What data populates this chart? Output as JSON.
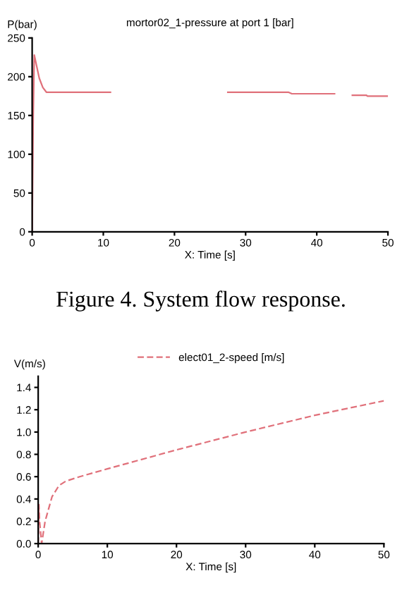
{
  "chart_data": [
    {
      "type": "line",
      "title": "mortor02_1-pressure at port 1 [bar]",
      "xlabel": "X: Time [s]",
      "ylabel": "P(bar)",
      "xlim": [
        0,
        50
      ],
      "xticks": [
        0,
        10,
        20,
        30,
        40,
        50
      ],
      "ylim": [
        0,
        250
      ],
      "yticks": [
        0,
        50,
        100,
        150,
        200,
        250
      ],
      "grid": false,
      "legend": false,
      "line_style": "solid",
      "annotations": [
        "Figure 4. System flow response."
      ],
      "series": [
        {
          "color": "#e0707a",
          "x": [
            0,
            0.15,
            0.3,
            0.6,
            1.0,
            1.5,
            2.0,
            5,
            11,
            11.1,
            27.5,
            32,
            36,
            36.5,
            42.5,
            42.6,
            45,
            47,
            47.1,
            50
          ],
          "values": [
            0,
            150,
            228,
            215,
            198,
            186,
            180,
            180,
            180,
            null,
            180,
            180,
            180,
            178,
            178,
            null,
            176,
            176,
            175,
            175
          ]
        }
      ]
    },
    {
      "type": "line",
      "xlabel": "X: Time [s]",
      "ylabel": "V(m/s)",
      "xlim": [
        0,
        50
      ],
      "xticks": [
        0,
        10,
        20,
        30,
        40,
        50
      ],
      "ylim": [
        0,
        1.5
      ],
      "yticks": [
        {
          "value": 0,
          "label": "0.0"
        },
        0.2,
        0.4,
        0.6,
        0.8,
        {
          "value": 1.0,
          "label": "1.0"
        },
        1.2,
        1.4
      ],
      "grid": false,
      "legend": "top",
      "line_style": "dashed",
      "series": [
        {
          "name": "elect01_2-speed [m/s]",
          "color": "#e0707a",
          "x": [
            0,
            0.1,
            0.2,
            0.5,
            1.0,
            2.0,
            3.0,
            4.0,
            6.0,
            10,
            20,
            30,
            40,
            50
          ],
          "values": [
            0,
            0.35,
            0.2,
            0.0,
            0.2,
            0.42,
            0.52,
            0.56,
            0.6,
            0.67,
            0.84,
            1.0,
            1.15,
            1.28
          ]
        }
      ]
    }
  ]
}
